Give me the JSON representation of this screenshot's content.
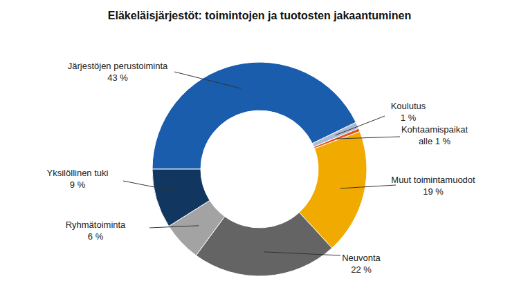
{
  "chart_data": {
    "type": "pie",
    "title": "Eläkeläisjärjestöt: toimintojen ja tuotosten jakaantuminen",
    "categories": [
      "Järjestöjen perustoiminta",
      "Koulutus",
      "Kohtaamispaikat",
      "Muut toimintamuodot",
      "Neuvonta",
      "Ryhmätoiminta",
      "Yksilöllinen tuki"
    ],
    "values": [
      43,
      1,
      0.5,
      19,
      22,
      6,
      9
    ],
    "value_labels": [
      "43 %",
      "1 %",
      "alle 1 %",
      "19 %",
      "22 %",
      "6 %",
      "9 %"
    ],
    "colors": [
      "#1a5dad",
      "#a9bbd6",
      "#e8551b",
      "#f0aa00",
      "#646464",
      "#a3a3a3",
      "#11365f"
    ],
    "data_labels": true
  }
}
